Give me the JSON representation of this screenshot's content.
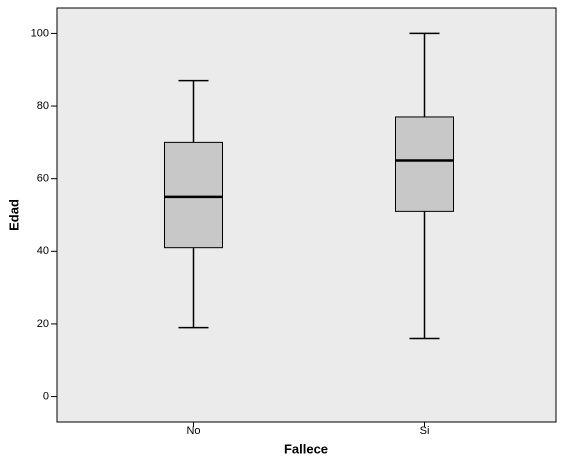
{
  "chart_data": {
    "type": "box",
    "xlabel": "Fallece",
    "ylabel": "Edad",
    "categories": [
      "No",
      "Si"
    ],
    "boxes": [
      {
        "min": 19,
        "q1": 41,
        "median": 55,
        "q3": 70,
        "max": 87
      },
      {
        "min": 16,
        "q1": 51,
        "median": 65,
        "q3": 77,
        "max": 100
      }
    ],
    "color": "#c8c8c8",
    "background": "#ebebeb",
    "ylim": [
      -7,
      107
    ],
    "yticks": [
      0,
      20,
      40,
      60,
      80,
      100
    ]
  }
}
